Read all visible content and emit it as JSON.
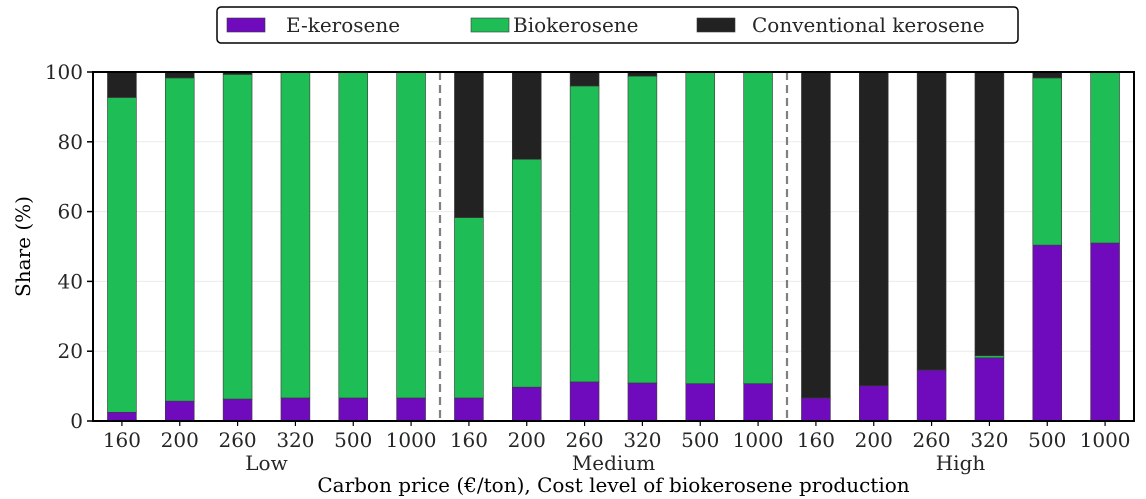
{
  "chart_data": {
    "type": "bar",
    "stacked": true,
    "groups": [
      "Low",
      "Medium",
      "High"
    ],
    "categories": [
      "160",
      "200",
      "260",
      "320",
      "500",
      "1000",
      "160",
      "200",
      "260",
      "320",
      "500",
      "1000",
      "160",
      "200",
      "260",
      "320",
      "500",
      "1000"
    ],
    "series": [
      {
        "name": "E-kerosene",
        "color": "#6f0abd",
        "values": [
          2.5,
          5.7,
          6.3,
          6.6,
          6.6,
          6.6,
          6.6,
          9.7,
          11.2,
          10.9,
          10.7,
          10.7,
          6.6,
          10.1,
          14.6,
          18.1,
          50.4,
          51.0
        ]
      },
      {
        "name": "Biokerosene",
        "color": "#1fbd55",
        "values": [
          90.2,
          92.6,
          93.0,
          93.4,
          93.4,
          93.4,
          51.7,
          65.3,
          84.8,
          87.9,
          89.3,
          89.3,
          0.0,
          0.0,
          0.0,
          0.6,
          47.9,
          49.0
        ]
      },
      {
        "name": "Conventional kerosene",
        "color": "#222222",
        "values": [
          7.3,
          1.7,
          0.7,
          0.0,
          0.0,
          0.0,
          41.7,
          25.0,
          4.0,
          1.2,
          0.0,
          0.0,
          93.4,
          89.9,
          85.4,
          81.3,
          1.7,
          0.0
        ]
      }
    ],
    "xlabel": "Carbon price (€/ton), Cost level of biokerosene production",
    "ylabel": "Share (%)",
    "ylim": [
      0,
      100
    ],
    "yticks": [
      "0",
      "20",
      "40",
      "60",
      "80",
      "100"
    ],
    "grid": "y",
    "legend_position": "top-center"
  }
}
